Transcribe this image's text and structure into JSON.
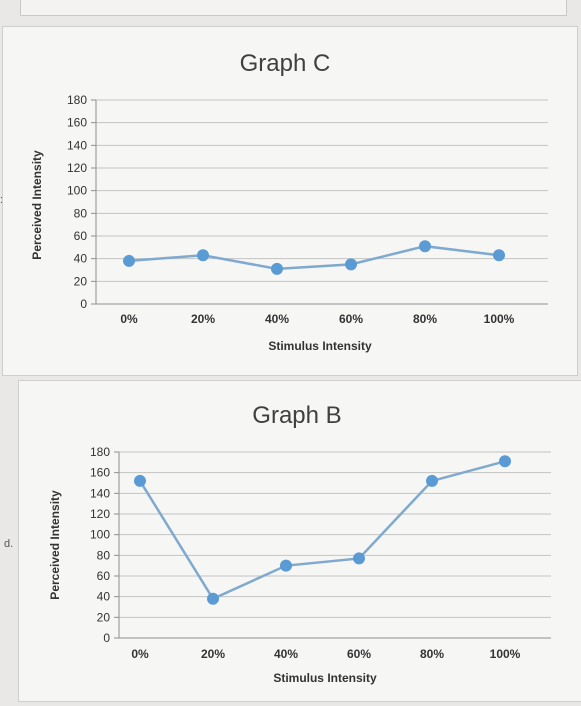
{
  "margin_labels": {
    "c": ":",
    "d": "d."
  },
  "chart_data": [
    {
      "type": "line",
      "title": "Graph C",
      "xlabel": "Stimulus Intensity",
      "ylabel": "Perceived Intensity",
      "categories": [
        "0%",
        "20%",
        "40%",
        "60%",
        "80%",
        "100%"
      ],
      "values": [
        38,
        43,
        31,
        35,
        51,
        43
      ],
      "ylim": [
        0,
        180
      ],
      "yticks": [
        0,
        20,
        40,
        60,
        80,
        100,
        120,
        140,
        160,
        180
      ],
      "grid": true,
      "colors": {
        "line": "#7fa9cf",
        "marker": "#5b9bd5"
      }
    },
    {
      "type": "line",
      "title": "Graph B",
      "xlabel": "Stimulus Intensity",
      "ylabel": "Perceived Intensity",
      "categories": [
        "0%",
        "20%",
        "40%",
        "60%",
        "80%",
        "100%"
      ],
      "values": [
        152,
        38,
        70,
        77,
        152,
        171
      ],
      "ylim": [
        0,
        180
      ],
      "yticks": [
        0,
        20,
        40,
        60,
        80,
        100,
        120,
        140,
        160,
        180
      ],
      "grid": true,
      "colors": {
        "line": "#7fa9cf",
        "marker": "#5b9bd5"
      }
    }
  ]
}
